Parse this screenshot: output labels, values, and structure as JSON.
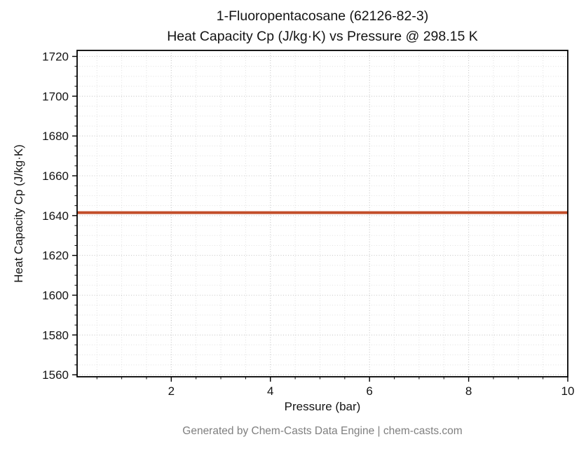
{
  "title": {
    "line1": "1-Fluoropentacosane (62126-82-3)",
    "line2": "Heat Capacity Cp (J/kg·K) vs Pressure @ 298.15 K"
  },
  "footer": "Generated by Chem-Casts Data Engine | chem-casts.com",
  "chart_data": {
    "type": "line",
    "title": "1-Fluoropentacosane (62126-82-3) — Heat Capacity Cp (J/kg·K) vs Pressure @ 298.15 K",
    "xlabel": "Pressure (bar)",
    "ylabel": "Heat Capacity Cp (J/kg·K)",
    "xlim": [
      0.1,
      10
    ],
    "ylim": [
      1559,
      1723
    ],
    "x_ticks": [
      2,
      4,
      6,
      8,
      10
    ],
    "y_ticks": [
      1560,
      1580,
      1600,
      1620,
      1640,
      1660,
      1680,
      1700,
      1720
    ],
    "x_minor_step": 0.5,
    "y_minor_step": 5,
    "grid": true,
    "grid_style": "dotted",
    "legend_position": "none",
    "series": [
      {
        "name": "heat-capacity-cp",
        "x": [
          0.1,
          10
        ],
        "y": [
          1641.5,
          1641.5
        ],
        "color": "#c24e2a",
        "linewidth": 4
      }
    ]
  }
}
